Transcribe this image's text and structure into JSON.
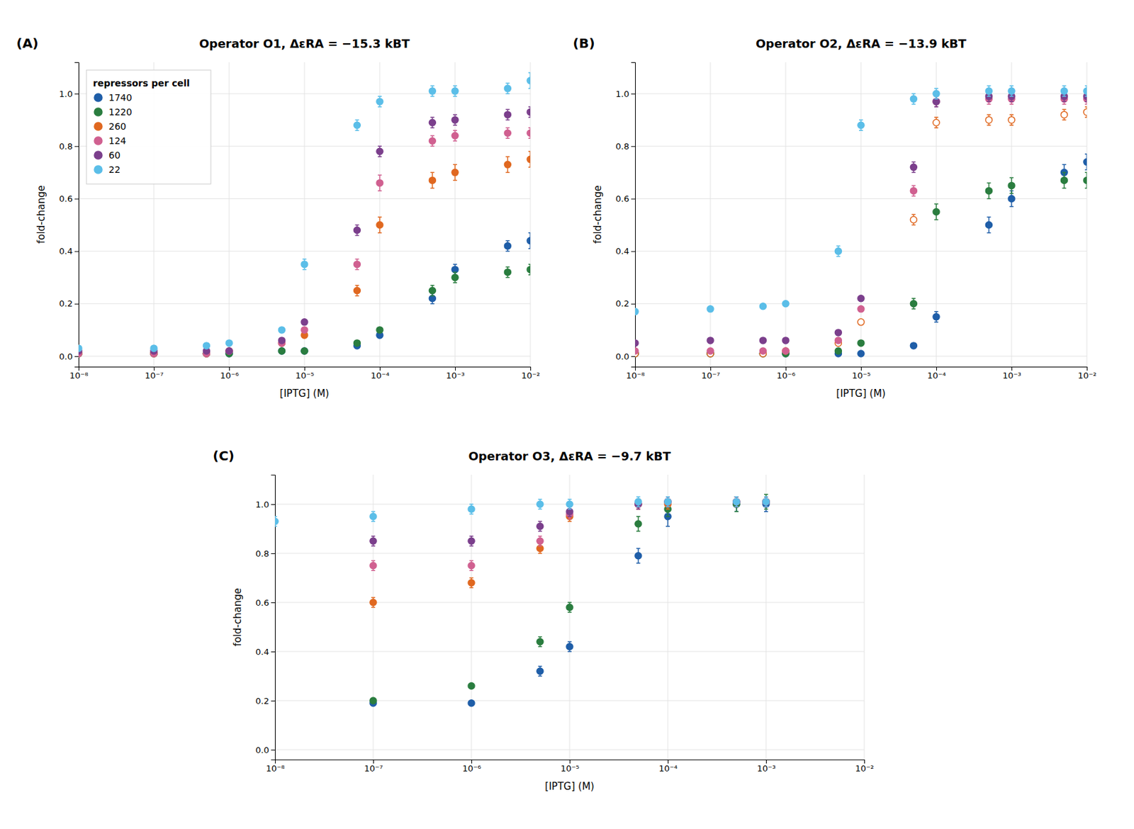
{
  "chart_data": [
    {
      "type": "scatter",
      "title": "Operator O1, ΔεRA = −15.3 kBT",
      "annotations": [
        "(A)"
      ],
      "x_label": "[IPTG] (M)",
      "y_label": "fold-change",
      "log": "x",
      "grid": true,
      "legend": "upper left",
      "legend_title": "repressors per cell",
      "xlim": [
        1e-08,
        0.01
      ],
      "xticks": [
        {
          "value": 1e-08,
          "label": "10⁻⁸"
        },
        {
          "value": 1e-07,
          "label": "10⁻⁷"
        },
        {
          "value": 1e-06,
          "label": "10⁻⁶"
        },
        {
          "value": 1e-05,
          "label": "10⁻⁵"
        },
        {
          "value": 0.0001,
          "label": "10⁻⁴"
        },
        {
          "value": 0.001,
          "label": "10⁻³"
        },
        {
          "value": 0.01,
          "label": "10⁻²"
        }
      ],
      "ylim": [
        -0.04,
        1.12
      ],
      "yticks": [
        {
          "value": 0,
          "label": "0.0"
        },
        0.2,
        0.4,
        0.6,
        0.8,
        {
          "value": 1,
          "label": "1.0"
        }
      ],
      "series": [
        {
          "name": "1740",
          "color": "#1F5EA8",
          "marker": "circle",
          "x": [
            1e-08,
            1e-07,
            5e-07,
            1e-06,
            5e-06,
            1e-05,
            5e-05,
            0.0001,
            0.0005,
            0.001,
            0.005,
            0.01
          ],
          "values": [
            0.01,
            0.01,
            0.01,
            0.01,
            0.02,
            0.02,
            0.04,
            0.08,
            0.22,
            0.33,
            0.42,
            0.44
          ],
          "errors": [
            0.005,
            0.005,
            0.005,
            0.005,
            0.005,
            0.005,
            0.01,
            0.01,
            0.02,
            0.02,
            0.02,
            0.03
          ]
        },
        {
          "name": "1220",
          "color": "#2A7D3F",
          "marker": "circle",
          "x": [
            1e-08,
            1e-07,
            5e-07,
            1e-06,
            5e-06,
            1e-05,
            5e-05,
            0.0001,
            0.0005,
            0.001,
            0.005,
            0.01
          ],
          "values": [
            0.01,
            0.01,
            0.01,
            0.01,
            0.02,
            0.02,
            0.05,
            0.1,
            0.25,
            0.3,
            0.32,
            0.33
          ],
          "errors": [
            0.005,
            0.005,
            0.005,
            0.005,
            0.005,
            0.005,
            0.01,
            0.01,
            0.02,
            0.02,
            0.02,
            0.02
          ]
        },
        {
          "name": "260",
          "color": "#E06820",
          "marker": "circle",
          "x": [
            1e-08,
            1e-07,
            5e-07,
            1e-06,
            5e-06,
            1e-05,
            5e-05,
            0.0001,
            0.0005,
            0.001,
            0.005,
            0.01
          ],
          "values": [
            0.01,
            0.01,
            0.01,
            0.02,
            0.05,
            0.08,
            0.25,
            0.5,
            0.67,
            0.7,
            0.73,
            0.75
          ],
          "errors": [
            0.005,
            0.005,
            0.005,
            0.005,
            0.01,
            0.01,
            0.02,
            0.03,
            0.03,
            0.03,
            0.03,
            0.03
          ]
        },
        {
          "name": "124",
          "color": "#D06090",
          "marker": "circle",
          "x": [
            1e-08,
            1e-07,
            5e-07,
            1e-06,
            5e-06,
            1e-05,
            5e-05,
            0.0001,
            0.0005,
            0.001,
            0.005,
            0.01
          ],
          "values": [
            0.01,
            0.01,
            0.01,
            0.02,
            0.05,
            0.1,
            0.35,
            0.66,
            0.82,
            0.84,
            0.85,
            0.85
          ],
          "errors": [
            0.005,
            0.005,
            0.005,
            0.005,
            0.01,
            0.01,
            0.02,
            0.03,
            0.02,
            0.02,
            0.02,
            0.02
          ]
        },
        {
          "name": "60",
          "color": "#7B3F8C",
          "marker": "circle",
          "x": [
            1e-08,
            1e-07,
            5e-07,
            1e-06,
            5e-06,
            1e-05,
            5e-05,
            0.0001,
            0.0005,
            0.001,
            0.005,
            0.01
          ],
          "values": [
            0.02,
            0.02,
            0.02,
            0.02,
            0.06,
            0.13,
            0.48,
            0.78,
            0.89,
            0.9,
            0.92,
            0.93
          ],
          "errors": [
            0.005,
            0.005,
            0.005,
            0.005,
            0.01,
            0.01,
            0.02,
            0.02,
            0.02,
            0.02,
            0.02,
            0.02
          ]
        },
        {
          "name": "22",
          "color": "#5BBEE8",
          "marker": "circle",
          "x": [
            1e-08,
            1e-07,
            5e-07,
            1e-06,
            5e-06,
            1e-05,
            5e-05,
            0.0001,
            0.0005,
            0.001,
            0.005,
            0.01
          ],
          "values": [
            0.03,
            0.03,
            0.04,
            0.05,
            0.1,
            0.35,
            0.88,
            0.97,
            1.01,
            1.01,
            1.02,
            1.05
          ],
          "errors": [
            0.01,
            0.01,
            0.01,
            0.01,
            0.01,
            0.02,
            0.02,
            0.02,
            0.02,
            0.02,
            0.02,
            0.03
          ]
        }
      ]
    },
    {
      "type": "scatter",
      "title": "Operator O2, ΔεRA = −13.9 kBT",
      "annotations": [
        "(B)"
      ],
      "x_label": "[IPTG] (M)",
      "y_label": "fold-change",
      "log": "x",
      "grid": true,
      "legend": false,
      "xlim": [
        1e-08,
        0.01
      ],
      "xticks": [
        {
          "value": 1e-08,
          "label": "10⁻⁸"
        },
        {
          "value": 1e-07,
          "label": "10⁻⁷"
        },
        {
          "value": 1e-06,
          "label": "10⁻⁶"
        },
        {
          "value": 1e-05,
          "label": "10⁻⁵"
        },
        {
          "value": 0.0001,
          "label": "10⁻⁴"
        },
        {
          "value": 0.001,
          "label": "10⁻³"
        },
        {
          "value": 0.01,
          "label": "10⁻²"
        }
      ],
      "ylim": [
        -0.04,
        1.12
      ],
      "yticks": [
        {
          "value": 0,
          "label": "0.0"
        },
        0.2,
        0.4,
        0.6,
        0.8,
        {
          "value": 1,
          "label": "1.0"
        }
      ],
      "series": [
        {
          "name": "1740",
          "color": "#1F5EA8",
          "marker": "circle",
          "x": [
            1e-08,
            1e-07,
            5e-07,
            1e-06,
            5e-06,
            1e-05,
            5e-05,
            0.0001,
            0.0005,
            0.001,
            0.005,
            0.01
          ],
          "values": [
            0.01,
            0.01,
            0.01,
            0.01,
            0.01,
            0.01,
            0.04,
            0.15,
            0.5,
            0.6,
            0.7,
            0.74
          ],
          "errors": [
            0.005,
            0.005,
            0.005,
            0.005,
            0.005,
            0.005,
            0.01,
            0.02,
            0.03,
            0.03,
            0.03,
            0.03
          ]
        },
        {
          "name": "1220",
          "color": "#2A7D3F",
          "marker": "circle",
          "x": [
            1e-08,
            1e-07,
            5e-07,
            1e-06,
            5e-06,
            1e-05,
            5e-05,
            0.0001,
            0.0005,
            0.001,
            0.005,
            0.01
          ],
          "values": [
            0.01,
            0.01,
            0.01,
            0.01,
            0.02,
            0.05,
            0.2,
            0.55,
            0.63,
            0.65,
            0.67,
            0.67
          ],
          "errors": [
            0.005,
            0.005,
            0.005,
            0.005,
            0.01,
            0.01,
            0.02,
            0.03,
            0.03,
            0.03,
            0.03,
            0.03
          ]
        },
        {
          "name": "260",
          "color": "#E06820",
          "marker": "open",
          "x": [
            1e-08,
            1e-07,
            5e-07,
            1e-06,
            5e-06,
            1e-05,
            5e-05,
            0.0001,
            0.0005,
            0.001,
            0.005,
            0.01
          ],
          "values": [
            0.01,
            0.01,
            0.01,
            0.02,
            0.05,
            0.13,
            0.52,
            0.89,
            0.9,
            0.9,
            0.92,
            0.93
          ],
          "errors": [
            0.005,
            0.005,
            0.005,
            0.005,
            0.01,
            0.01,
            0.02,
            0.02,
            0.02,
            0.02,
            0.02,
            0.02
          ]
        },
        {
          "name": "124",
          "color": "#D06090",
          "marker": "circle",
          "x": [
            1e-08,
            1e-07,
            5e-07,
            1e-06,
            5e-06,
            1e-05,
            5e-05,
            0.0001,
            0.0005,
            0.001,
            0.005,
            0.01
          ],
          "values": [
            0.02,
            0.02,
            0.02,
            0.02,
            0.06,
            0.18,
            0.63,
            0.97,
            0.98,
            0.98,
            0.98,
            0.98
          ],
          "errors": [
            0.005,
            0.005,
            0.005,
            0.005,
            0.01,
            0.01,
            0.02,
            0.02,
            0.02,
            0.02,
            0.02,
            0.02
          ]
        },
        {
          "name": "60",
          "color": "#7B3F8C",
          "marker": "circle",
          "x": [
            1e-08,
            1e-07,
            5e-07,
            1e-06,
            5e-06,
            1e-05,
            5e-05,
            0.0001,
            0.0005,
            0.001,
            0.005,
            0.01
          ],
          "values": [
            0.05,
            0.06,
            0.06,
            0.06,
            0.09,
            0.22,
            0.72,
            0.97,
            0.99,
            0.99,
            0.99,
            0.99
          ],
          "errors": [
            0.01,
            0.01,
            0.01,
            0.01,
            0.01,
            0.01,
            0.02,
            0.02,
            0.02,
            0.02,
            0.02,
            0.02
          ]
        },
        {
          "name": "22",
          "color": "#5BBEE8",
          "marker": "circle",
          "x": [
            1e-08,
            1e-07,
            5e-07,
            1e-06,
            5e-06,
            1e-05,
            5e-05,
            0.0001,
            0.0005,
            0.001,
            0.005,
            0.01
          ],
          "values": [
            0.17,
            0.18,
            0.19,
            0.2,
            0.4,
            0.88,
            0.98,
            1.0,
            1.01,
            1.01,
            1.01,
            1.01
          ],
          "errors": [
            0.01,
            0.01,
            0.01,
            0.01,
            0.02,
            0.02,
            0.02,
            0.02,
            0.02,
            0.02,
            0.02,
            0.02
          ]
        }
      ]
    },
    {
      "type": "scatter",
      "title": "Operator O3, ΔεRA = −9.7 kBT",
      "annotations": [
        "(C)"
      ],
      "x_label": "[IPTG] (M)",
      "y_label": "fold-change",
      "log": "x",
      "grid": true,
      "legend": false,
      "xlim": [
        1e-08,
        0.01
      ],
      "xticks": [
        {
          "value": 1e-08,
          "label": "10⁻⁸"
        },
        {
          "value": 1e-07,
          "label": "10⁻⁷"
        },
        {
          "value": 1e-06,
          "label": "10⁻⁶"
        },
        {
          "value": 1e-05,
          "label": "10⁻⁵"
        },
        {
          "value": 0.0001,
          "label": "10⁻⁴"
        },
        {
          "value": 0.001,
          "label": "10⁻³"
        },
        {
          "value": 0.01,
          "label": "10⁻²"
        }
      ],
      "ylim": [
        -0.04,
        1.12
      ],
      "yticks": [
        {
          "value": 0,
          "label": "0.0"
        },
        0.2,
        0.4,
        0.6,
        0.8,
        {
          "value": 1,
          "label": "1.0"
        }
      ],
      "series": [
        {
          "name": "1740",
          "color": "#1F5EA8",
          "marker": "circle",
          "x": [
            1e-07,
            1e-06,
            5e-06,
            1e-05,
            5e-05,
            0.0001,
            0.0005,
            0.001
          ],
          "values": [
            0.19,
            0.19,
            0.32,
            0.42,
            0.79,
            0.95,
            1.0,
            1.0
          ],
          "errors": [
            0.01,
            0.01,
            0.02,
            0.02,
            0.03,
            0.04,
            0.03,
            0.03
          ]
        },
        {
          "name": "1220",
          "color": "#2A7D3F",
          "marker": "circle",
          "x": [
            1e-07,
            1e-06,
            5e-06,
            1e-05,
            5e-05,
            0.0001,
            0.0005,
            0.001
          ],
          "values": [
            0.2,
            0.26,
            0.44,
            0.58,
            0.92,
            0.98,
            1.0,
            1.01
          ],
          "errors": [
            0.01,
            0.01,
            0.02,
            0.02,
            0.03,
            0.03,
            0.03,
            0.03
          ]
        },
        {
          "name": "260",
          "color": "#E06820",
          "marker": "circle",
          "x": [
            1e-07,
            1e-06,
            5e-06,
            1e-05,
            5e-05,
            0.0001,
            0.0005,
            0.001
          ],
          "values": [
            0.6,
            0.68,
            0.82,
            0.95,
            1.0,
            1.0,
            1.01,
            1.01
          ],
          "errors": [
            0.02,
            0.02,
            0.02,
            0.02,
            0.02,
            0.02,
            0.02,
            0.02
          ]
        },
        {
          "name": "124",
          "color": "#D06090",
          "marker": "circle",
          "x": [
            1e-07,
            1e-06,
            5e-06,
            1e-05,
            5e-05,
            0.0001,
            0.0005,
            0.001
          ],
          "values": [
            0.75,
            0.75,
            0.85,
            0.96,
            1.0,
            1.01,
            1.01,
            1.01
          ],
          "errors": [
            0.02,
            0.02,
            0.02,
            0.02,
            0.02,
            0.02,
            0.02,
            0.02
          ]
        },
        {
          "name": "60",
          "color": "#7B3F8C",
          "marker": "circle",
          "x": [
            1e-07,
            1e-06,
            5e-06,
            1e-05,
            5e-05,
            0.0001,
            0.0005,
            0.001
          ],
          "values": [
            0.85,
            0.85,
            0.91,
            0.97,
            1.0,
            1.01,
            1.01,
            1.01
          ],
          "errors": [
            0.02,
            0.02,
            0.02,
            0.02,
            0.02,
            0.02,
            0.02,
            0.02
          ]
        },
        {
          "name": "22",
          "color": "#5BBEE8",
          "marker": "circle",
          "x": [
            1e-08,
            1e-07,
            1e-06,
            5e-06,
            1e-05,
            5e-05,
            0.0001,
            0.0005,
            0.001
          ],
          "values": [
            0.93,
            0.95,
            0.98,
            1.0,
            1.0,
            1.01,
            1.01,
            1.01,
            1.01
          ],
          "errors": [
            0.02,
            0.02,
            0.02,
            0.02,
            0.02,
            0.02,
            0.02,
            0.02,
            0.02
          ]
        }
      ]
    }
  ]
}
